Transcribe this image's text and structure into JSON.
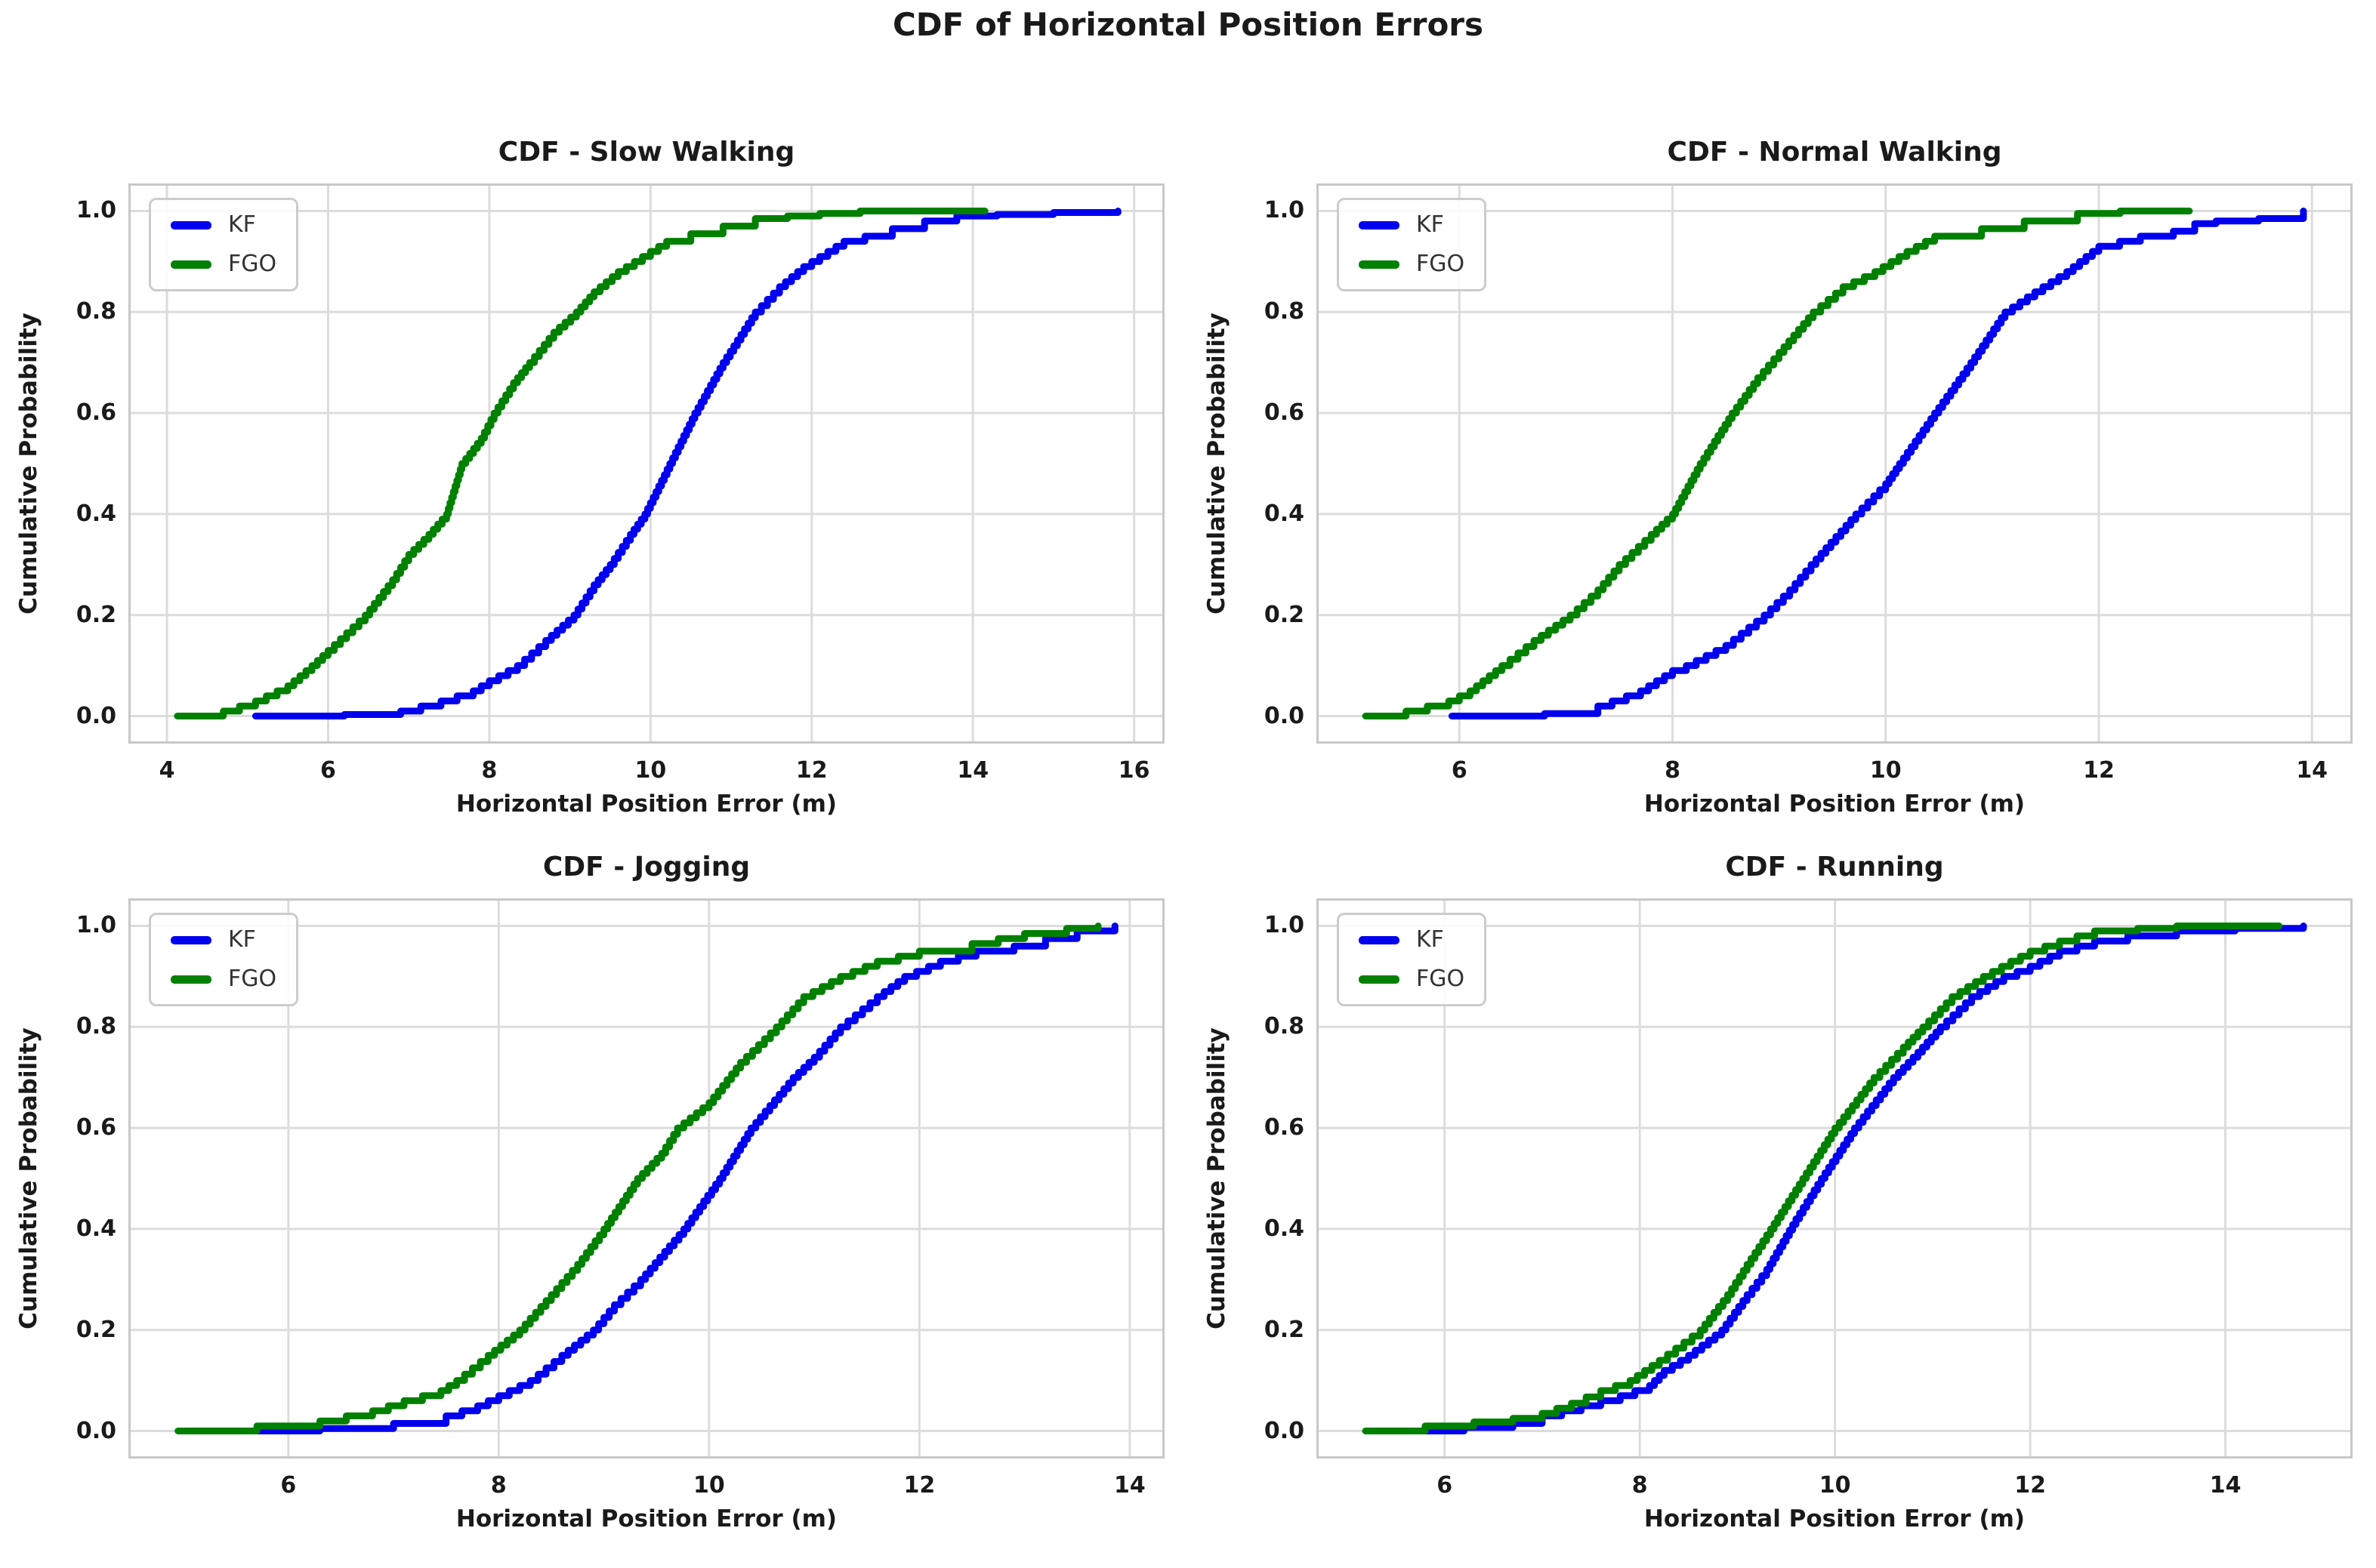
{
  "figure": {
    "title": "CDF of Horizontal Position Errors"
  },
  "colors": {
    "kf": "#0000EE",
    "fgo": "#008000",
    "grid": "#DCDCDC",
    "spine": "#C8C8C8",
    "text": "#1A1A1A",
    "legend_text": "#333333"
  },
  "chart_data": [
    {
      "type": "line",
      "title": "CDF - Slow Walking",
      "xlabel": "Horizontal Position Error (m)",
      "ylabel": "Cumulative Probability",
      "xlim": [
        3.55,
        16.35
      ],
      "ylim": [
        -0.05,
        1.05
      ],
      "xticks": [
        4,
        6,
        8,
        10,
        12,
        14,
        16
      ],
      "yticks": [
        0.0,
        0.2,
        0.4,
        0.6,
        0.8,
        1.0
      ],
      "grid": true,
      "legend_position": "upper-left",
      "series": [
        {
          "name": "KF",
          "color": "#0000EE",
          "points": [
            [
              5.1,
              0
            ],
            [
              6.2,
              0.003
            ],
            [
              6.9,
              0.01
            ],
            [
              7.4,
              0.03
            ],
            [
              7.8,
              0.05
            ],
            [
              8.0,
              0.07
            ],
            [
              8.35,
              0.1
            ],
            [
              8.7,
              0.15
            ],
            [
              9.05,
              0.2
            ],
            [
              9.3,
              0.26
            ],
            [
              9.5,
              0.3
            ],
            [
              9.75,
              0.36
            ],
            [
              9.93,
              0.4
            ],
            [
              10.24,
              0.5
            ],
            [
              10.55,
              0.6
            ],
            [
              10.9,
              0.7
            ],
            [
              11.3,
              0.8
            ],
            [
              11.6,
              0.85
            ],
            [
              11.9,
              0.89
            ],
            [
              12.1,
              0.91
            ],
            [
              12.4,
              0.94
            ],
            [
              12.66,
              0.95
            ],
            [
              13.0,
              0.965
            ],
            [
              13.4,
              0.98
            ],
            [
              13.8,
              0.99
            ],
            [
              14.3,
              0.993
            ],
            [
              15.0,
              0.997
            ],
            [
              15.8,
              1.0
            ]
          ]
        },
        {
          "name": "FGO",
          "color": "#008000",
          "points": [
            [
              4.13,
              0
            ],
            [
              4.7,
              0.01
            ],
            [
              5.1,
              0.03
            ],
            [
              5.5,
              0.06
            ],
            [
              5.8,
              0.1
            ],
            [
              6.0,
              0.13
            ],
            [
              6.46,
              0.2
            ],
            [
              6.8,
              0.27
            ],
            [
              7.0,
              0.32
            ],
            [
              7.25,
              0.36
            ],
            [
              7.47,
              0.4
            ],
            [
              7.66,
              0.5
            ],
            [
              7.9,
              0.55
            ],
            [
              8.06,
              0.6
            ],
            [
              8.3,
              0.66
            ],
            [
              8.5,
              0.7
            ],
            [
              8.8,
              0.76
            ],
            [
              9.08,
              0.8
            ],
            [
              9.3,
              0.84
            ],
            [
              9.6,
              0.88
            ],
            [
              9.9,
              0.91
            ],
            [
              10.2,
              0.94
            ],
            [
              10.5,
              0.955
            ],
            [
              10.9,
              0.97
            ],
            [
              11.3,
              0.985
            ],
            [
              11.7,
              0.99
            ],
            [
              12.1,
              0.995
            ],
            [
              12.6,
              1.0
            ],
            [
              14.15,
              1.0
            ]
          ]
        }
      ]
    },
    {
      "type": "line",
      "title": "CDF - Normal Walking",
      "xlabel": "Horizontal Position Error (m)",
      "ylabel": "Cumulative Probability",
      "xlim": [
        4.68,
        14.36
      ],
      "ylim": [
        -0.05,
        1.05
      ],
      "xticks": [
        6,
        8,
        10,
        12,
        14
      ],
      "yticks": [
        0.0,
        0.2,
        0.4,
        0.6,
        0.8,
        1.0
      ],
      "grid": true,
      "legend_position": "upper-left",
      "series": [
        {
          "name": "KF",
          "color": "#0000EE",
          "points": [
            [
              5.93,
              0
            ],
            [
              6.8,
              0.005
            ],
            [
              7.3,
              0.02
            ],
            [
              7.7,
              0.05
            ],
            [
              8.0,
              0.09
            ],
            [
              8.13,
              0.1
            ],
            [
              8.5,
              0.14
            ],
            [
              8.86,
              0.2
            ],
            [
              9.1,
              0.25
            ],
            [
              9.3,
              0.3
            ],
            [
              9.72,
              0.4
            ],
            [
              10.0,
              0.46
            ],
            [
              10.13,
              0.5
            ],
            [
              10.46,
              0.6
            ],
            [
              10.8,
              0.7
            ],
            [
              11.12,
              0.8
            ],
            [
              11.4,
              0.84
            ],
            [
              11.7,
              0.88
            ],
            [
              12.0,
              0.93
            ],
            [
              12.39,
              0.95
            ],
            [
              12.7,
              0.96
            ],
            [
              12.9,
              0.975
            ],
            [
              13.1,
              0.98
            ],
            [
              13.5,
              0.985
            ],
            [
              13.92,
              1.0
            ]
          ]
        },
        {
          "name": "FGO",
          "color": "#008000",
          "points": [
            [
              5.12,
              0
            ],
            [
              5.5,
              0.01
            ],
            [
              5.9,
              0.03
            ],
            [
              6.1,
              0.05
            ],
            [
              6.4,
              0.1
            ],
            [
              6.7,
              0.15
            ],
            [
              7.04,
              0.2
            ],
            [
              7.3,
              0.25
            ],
            [
              7.5,
              0.3
            ],
            [
              7.8,
              0.36
            ],
            [
              8.0,
              0.4
            ],
            [
              8.26,
              0.5
            ],
            [
              8.56,
              0.6
            ],
            [
              8.8,
              0.67
            ],
            [
              9.0,
              0.72
            ],
            [
              9.32,
              0.8
            ],
            [
              9.6,
              0.85
            ],
            [
              9.9,
              0.88
            ],
            [
              10.2,
              0.92
            ],
            [
              10.46,
              0.95
            ],
            [
              10.9,
              0.965
            ],
            [
              11.3,
              0.98
            ],
            [
              11.8,
              0.995
            ],
            [
              12.2,
              1.0
            ],
            [
              12.85,
              1.0
            ]
          ]
        }
      ]
    },
    {
      "type": "line",
      "title": "CDF - Jogging",
      "xlabel": "Horizontal Position Error (m)",
      "ylabel": "Cumulative Probability",
      "xlim": [
        4.5,
        14.31
      ],
      "ylim": [
        -0.05,
        1.05
      ],
      "xticks": [
        6,
        8,
        10,
        12,
        14
      ],
      "yticks": [
        0.0,
        0.2,
        0.4,
        0.6,
        0.8,
        1.0
      ],
      "grid": true,
      "legend_position": "upper-left",
      "series": [
        {
          "name": "KF",
          "color": "#0000EE",
          "points": [
            [
              5.52,
              0
            ],
            [
              6.3,
              0.005
            ],
            [
              7.0,
              0.015
            ],
            [
              7.5,
              0.03
            ],
            [
              7.8,
              0.05
            ],
            [
              8.0,
              0.07
            ],
            [
              8.3,
              0.1
            ],
            [
              8.6,
              0.15
            ],
            [
              8.9,
              0.2
            ],
            [
              9.1,
              0.25
            ],
            [
              9.35,
              0.3
            ],
            [
              9.76,
              0.4
            ],
            [
              10.1,
              0.5
            ],
            [
              10.4,
              0.6
            ],
            [
              10.8,
              0.7
            ],
            [
              11.0,
              0.74
            ],
            [
              11.25,
              0.8
            ],
            [
              11.6,
              0.86
            ],
            [
              11.86,
              0.9
            ],
            [
              12.2,
              0.93
            ],
            [
              12.54,
              0.95
            ],
            [
              12.9,
              0.96
            ],
            [
              13.2,
              0.975
            ],
            [
              13.5,
              0.99
            ],
            [
              13.86,
              1.0
            ]
          ]
        },
        {
          "name": "FGO",
          "color": "#008000",
          "points": [
            [
              4.95,
              0
            ],
            [
              5.7,
              0.01
            ],
            [
              6.3,
              0.02
            ],
            [
              6.8,
              0.04
            ],
            [
              7.1,
              0.06
            ],
            [
              7.45,
              0.08
            ],
            [
              7.6,
              0.1
            ],
            [
              7.9,
              0.15
            ],
            [
              8.2,
              0.2
            ],
            [
              8.5,
              0.27
            ],
            [
              8.75,
              0.33
            ],
            [
              9.0,
              0.4
            ],
            [
              9.32,
              0.5
            ],
            [
              9.55,
              0.55
            ],
            [
              9.7,
              0.6
            ],
            [
              10.0,
              0.65
            ],
            [
              10.3,
              0.73
            ],
            [
              10.64,
              0.8
            ],
            [
              10.9,
              0.86
            ],
            [
              11.25,
              0.9
            ],
            [
              11.6,
              0.93
            ],
            [
              12.0,
              0.95
            ],
            [
              12.5,
              0.965
            ],
            [
              13.0,
              0.985
            ],
            [
              13.4,
              0.995
            ],
            [
              13.7,
              1.0
            ]
          ]
        }
      ]
    },
    {
      "type": "line",
      "title": "CDF - Running",
      "xlabel": "Horizontal Position Error (m)",
      "ylabel": "Cumulative Probability",
      "xlim": [
        4.71,
        15.28
      ],
      "ylim": [
        -0.05,
        1.05
      ],
      "xticks": [
        6,
        8,
        10,
        12,
        14
      ],
      "yticks": [
        0.0,
        0.2,
        0.4,
        0.6,
        0.8,
        1.0
      ],
      "grid": true,
      "legend_position": "upper-left",
      "series": [
        {
          "name": "KF",
          "color": "#0000EE",
          "points": [
            [
              5.55,
              0
            ],
            [
              6.2,
              0.007
            ],
            [
              6.7,
              0.015
            ],
            [
              7.0,
              0.03
            ],
            [
              7.4,
              0.05
            ],
            [
              7.8,
              0.07
            ],
            [
              8.1,
              0.09
            ],
            [
              8.25,
              0.12
            ],
            [
              8.5,
              0.15
            ],
            [
              8.84,
              0.2
            ],
            [
              9.1,
              0.27
            ],
            [
              9.3,
              0.32
            ],
            [
              9.6,
              0.42
            ],
            [
              9.86,
              0.5
            ],
            [
              10.2,
              0.6
            ],
            [
              10.6,
              0.7
            ],
            [
              10.85,
              0.75
            ],
            [
              11.08,
              0.8
            ],
            [
              11.4,
              0.86
            ],
            [
              11.73,
              0.9
            ],
            [
              12.0,
              0.92
            ],
            [
              12.3,
              0.95
            ],
            [
              12.66,
              0.97
            ],
            [
              13.0,
              0.98
            ],
            [
              13.5,
              0.99
            ],
            [
              14.1,
              0.995
            ],
            [
              14.8,
              1.0
            ]
          ]
        },
        {
          "name": "FGO",
          "color": "#008000",
          "points": [
            [
              5.19,
              0
            ],
            [
              5.8,
              0.01
            ],
            [
              6.3,
              0.018
            ],
            [
              6.7,
              0.025
            ],
            [
              7.0,
              0.035
            ],
            [
              7.3,
              0.055
            ],
            [
              7.6,
              0.08
            ],
            [
              7.9,
              0.1
            ],
            [
              8.2,
              0.14
            ],
            [
              8.62,
              0.2
            ],
            [
              8.9,
              0.27
            ],
            [
              9.1,
              0.33
            ],
            [
              9.34,
              0.4
            ],
            [
              9.67,
              0.5
            ],
            [
              10.0,
              0.6
            ],
            [
              10.4,
              0.7
            ],
            [
              10.7,
              0.76
            ],
            [
              10.9,
              0.8
            ],
            [
              11.2,
              0.86
            ],
            [
              11.52,
              0.9
            ],
            [
              11.8,
              0.93
            ],
            [
              12.0,
              0.95
            ],
            [
              12.3,
              0.97
            ],
            [
              12.66,
              0.99
            ],
            [
              13.1,
              0.995
            ],
            [
              13.5,
              1.0
            ],
            [
              14.55,
              1.0
            ]
          ]
        }
      ]
    }
  ]
}
